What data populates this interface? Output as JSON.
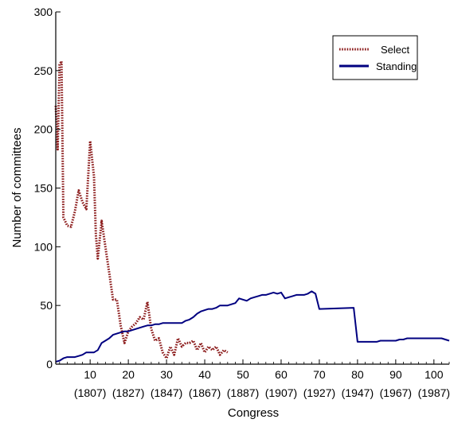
{
  "chart_data": {
    "type": "line",
    "xlabel": "Congress",
    "ylabel": "Number of committees",
    "xlim": [
      1,
      104
    ],
    "ylim": [
      0,
      300
    ],
    "x_ticks": [
      {
        "value": 10,
        "label": "10",
        "year": "(1807)"
      },
      {
        "value": 20,
        "label": "20",
        "year": "(1827)"
      },
      {
        "value": 30,
        "label": "30",
        "year": "(1847)"
      },
      {
        "value": 40,
        "label": "40",
        "year": "(1867)"
      },
      {
        "value": 50,
        "label": "50",
        "year": "(1887)"
      },
      {
        "value": 60,
        "label": "60",
        "year": "(1907)"
      },
      {
        "value": 70,
        "label": "70",
        "year": "(1927)"
      },
      {
        "value": 80,
        "label": "80",
        "year": "(1947)"
      },
      {
        "value": 90,
        "label": "90",
        "year": "(1967)"
      },
      {
        "value": 100,
        "label": "100",
        "year": "(1987)"
      }
    ],
    "y_ticks": [
      0,
      50,
      100,
      150,
      200,
      250,
      300
    ],
    "legend_position": "top-right",
    "series": [
      {
        "name": "Select",
        "color": "#8b1a1a",
        "style": "dotted",
        "x": [
          1,
          1.5,
          2,
          2.5,
          3,
          4,
          5,
          6,
          7,
          8,
          9,
          10,
          11,
          11.5,
          12,
          13,
          14,
          15,
          16,
          17,
          18,
          19,
          20,
          21,
          22,
          23,
          24,
          25,
          26,
          27,
          28,
          29,
          30,
          31,
          32,
          33,
          34,
          35,
          36,
          37,
          38,
          39,
          40,
          41,
          42,
          43,
          44,
          45,
          46
        ],
        "y": [
          220,
          183,
          255,
          258,
          125,
          118,
          117,
          130,
          148,
          138,
          132,
          190,
          160,
          110,
          90,
          122,
          100,
          78,
          55,
          55,
          33,
          18,
          28,
          32,
          35,
          40,
          38,
          53,
          30,
          20,
          22,
          10,
          5,
          15,
          8,
          22,
          15,
          18,
          18,
          20,
          12,
          18,
          10,
          15,
          12,
          15,
          8,
          12,
          10
        ]
      },
      {
        "name": "Standing",
        "color": "#000080",
        "style": "solid",
        "x": [
          1,
          2,
          3,
          4,
          5,
          6,
          7,
          8,
          9,
          10,
          11,
          12,
          13,
          14,
          15,
          16,
          17,
          18,
          19,
          20,
          21,
          22,
          23,
          24,
          25,
          26,
          27,
          28,
          29,
          30,
          31,
          32,
          33,
          34,
          35,
          36,
          37,
          38,
          39,
          40,
          41,
          42,
          43,
          44,
          45,
          46,
          47,
          48,
          49,
          50,
          51,
          52,
          53,
          54,
          55,
          56,
          57,
          58,
          59,
          60,
          61,
          62,
          63,
          64,
          65,
          66,
          67,
          68,
          69,
          70,
          79,
          80,
          85,
          86,
          90,
          91,
          92,
          93,
          94,
          102,
          103,
          104
        ],
        "y": [
          2,
          3,
          5,
          6,
          6,
          6,
          7,
          8,
          10,
          10,
          10,
          12,
          18,
          20,
          22,
          25,
          26,
          27,
          28,
          28,
          29,
          30,
          31,
          32,
          33,
          33,
          34,
          34,
          35,
          35,
          35,
          35,
          35,
          35,
          37,
          38,
          40,
          43,
          45,
          46,
          47,
          47,
          48,
          50,
          50,
          50,
          51,
          52,
          56,
          55,
          54,
          56,
          57,
          58,
          59,
          59,
          60,
          61,
          60,
          61,
          56,
          57,
          58,
          59,
          59,
          59,
          60,
          62,
          60,
          47,
          48,
          19,
          19,
          20,
          20,
          21,
          21,
          22,
          22,
          22,
          21,
          20
        ]
      }
    ]
  }
}
